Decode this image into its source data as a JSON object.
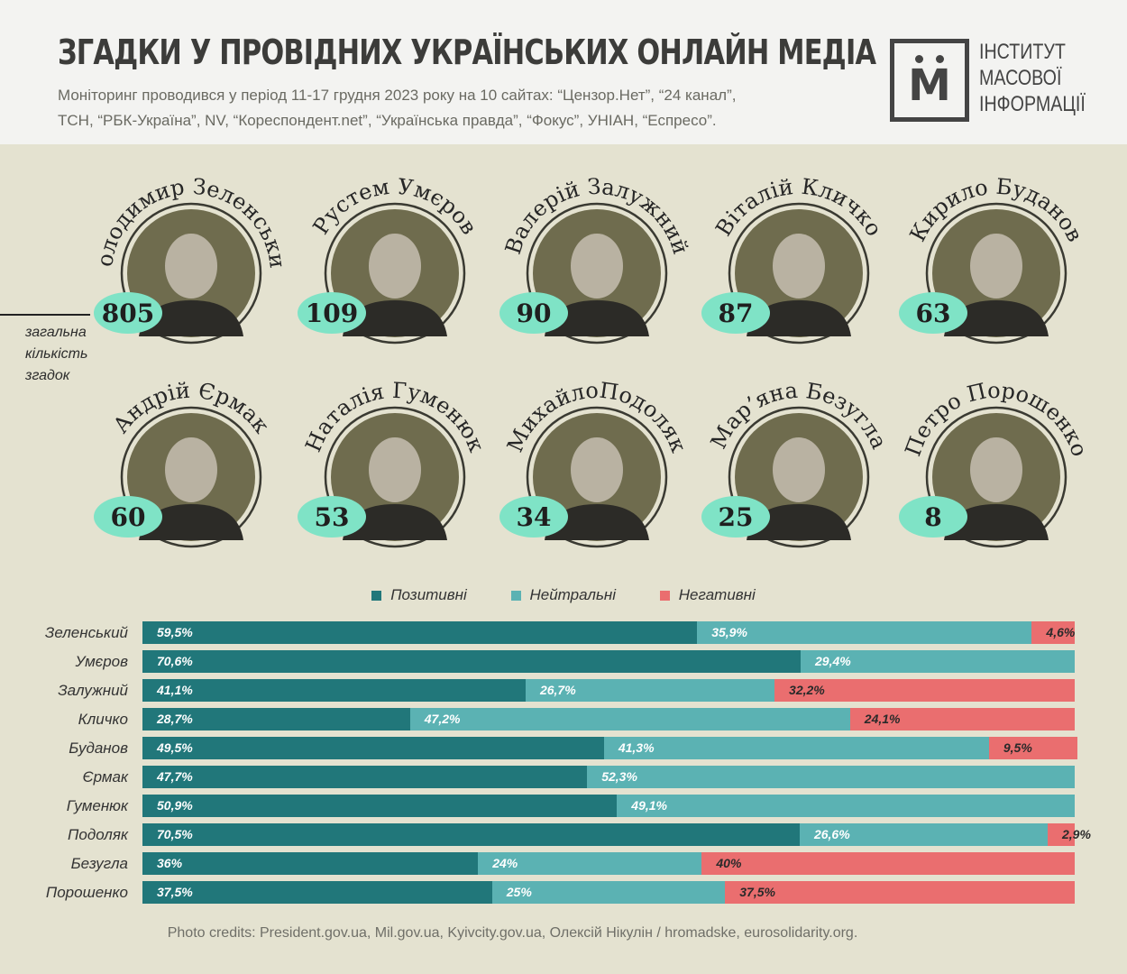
{
  "title": "ЗГАДКИ У ПРОВІДНИХ УКРАЇНСЬКИХ ОНЛАЙН МЕДІА",
  "subtitle": [
    "Моніторинг проводився у період 11-17 грудня 2023 року на 10 сайтах: “Цензор.Нет”, “24 канал”,",
    "ТСН, “РБК-Україна”, NV, “Кореспондент.net”, “Українська правда”, “Фокус”, УНІАН, “Еспресо”."
  ],
  "logo": {
    "letter": "М",
    "lines": [
      "ІНСТИТУТ",
      "МАСОВОЇ",
      "ІНФОРМАЦІЇ"
    ]
  },
  "leader_note": [
    "загальна",
    "кількість",
    "згадок"
  ],
  "persons": [
    {
      "name": "Володимир Зеленський",
      "mentions": 805
    },
    {
      "name": "Рустем Умєров",
      "mentions": 109
    },
    {
      "name": "Валерій Залужний",
      "mentions": 90
    },
    {
      "name": "Віталій Кличко",
      "mentions": 87
    },
    {
      "name": "Кирило Буданов",
      "mentions": 63
    },
    {
      "name": "Андрій Єрмак",
      "mentions": 60
    },
    {
      "name": "Наталія Гуменюк",
      "mentions": 53
    },
    {
      "name": "МихайлоПодоляк",
      "mentions": 34
    },
    {
      "name": "Мар’яна Безугла",
      "mentions": 25
    },
    {
      "name": "Петро Порошенко",
      "mentions": 8
    }
  ],
  "colors": {
    "positive": "#21777a",
    "neutral": "#5bb2b3",
    "negative": "#ea6e6f",
    "badge": "#7fe3c6",
    "portrait": "#6f6c4e"
  },
  "chart_data": {
    "type": "bar",
    "stacked": true,
    "orientation": "horizontal",
    "categories": [
      "Зеленський",
      "Умєров",
      "Залужний",
      "Кличко",
      "Буданов",
      "Єрмак",
      "Гуменюк",
      "Подоляк",
      "Безугла",
      "Порошенко"
    ],
    "series": [
      {
        "name": "Позитивні",
        "values": [
          59.5,
          70.6,
          41.1,
          28.7,
          49.5,
          47.7,
          50.9,
          70.5,
          36,
          37.5
        ],
        "labels": [
          "59,5%",
          "70,6%",
          "41,1%",
          "28,7%",
          "49,5%",
          "47,7%",
          "50,9%",
          "70,5%",
          "36%",
          "37,5%"
        ]
      },
      {
        "name": "Нейтральні",
        "values": [
          35.9,
          29.4,
          26.7,
          47.2,
          41.3,
          52.3,
          49.1,
          26.6,
          24,
          25
        ],
        "labels": [
          "35,9%",
          "29,4%",
          "26,7%",
          "47,2%",
          "41,3%",
          "52,3%",
          "49,1%",
          "26,6%",
          "24%",
          "25%"
        ]
      },
      {
        "name": "Негативні",
        "values": [
          4.6,
          0,
          32.2,
          24.1,
          9.5,
          0,
          0,
          2.9,
          40,
          37.5
        ],
        "labels": [
          "4,6%",
          "",
          "32,2%",
          "24,1%",
          "9,5%",
          "",
          "",
          "2,9%",
          "40%",
          "37,5%"
        ]
      }
    ],
    "xlim": [
      0,
      100
    ],
    "legend": "top-center"
  },
  "credits": "Photo credits: President.gov.ua, Mil.gov.ua, Kyivcity.gov.ua, Олексій Нікулін / hromadske, eurosolidarity.org."
}
